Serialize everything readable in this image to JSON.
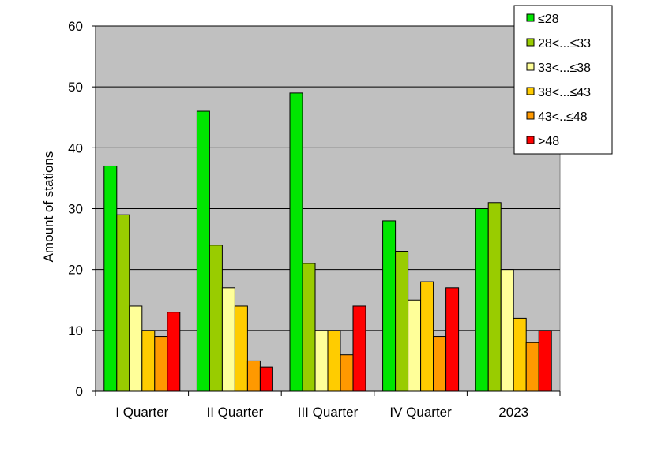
{
  "chart_data": {
    "type": "bar",
    "title": "",
    "xlabel": "",
    "ylabel": "Amount  of stations",
    "ylim": [
      0,
      60
    ],
    "yticks": [
      0,
      10,
      20,
      30,
      40,
      50,
      60
    ],
    "grid": true,
    "legend_position": "top-right",
    "plot_background": "#c0c0c0",
    "categories": [
      "I Quarter",
      "II Quarter",
      "III Quarter",
      "IV Quarter",
      "2023"
    ],
    "series": [
      {
        "name": "≤28",
        "color": "#00e600",
        "values": [
          37,
          46,
          49,
          28,
          30
        ]
      },
      {
        "name": "28<...≤33",
        "color": "#99cc00",
        "values": [
          29,
          24,
          21,
          23,
          31
        ]
      },
      {
        "name": "33<...≤38",
        "color": "#ffff99",
        "values": [
          14,
          17,
          10,
          15,
          20
        ]
      },
      {
        "name": "38<...≤43",
        "color": "#ffcc00",
        "values": [
          10,
          14,
          10,
          18,
          12
        ]
      },
      {
        "name": "43<..≤48",
        "color": "#ff9900",
        "values": [
          9,
          5,
          6,
          9,
          8
        ]
      },
      {
        "name": ">48",
        "color": "#ff0000",
        "values": [
          13,
          4,
          14,
          17,
          10
        ]
      }
    ]
  }
}
